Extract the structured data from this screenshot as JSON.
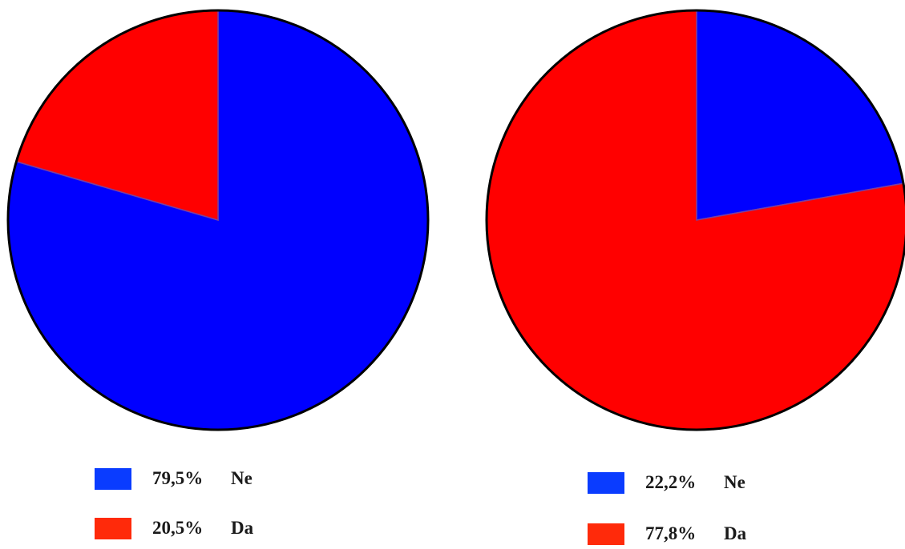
{
  "chart_data": [
    {
      "type": "pie",
      "slices": [
        {
          "label": "Ne",
          "value": 79.5,
          "value_label": "79,5%",
          "color": "#0000ff"
        },
        {
          "label": "Da",
          "value": 20.5,
          "value_label": "20,5%",
          "color": "#ff0000"
        }
      ],
      "legend_position": "bottom"
    },
    {
      "type": "pie",
      "slices": [
        {
          "label": "Ne",
          "value": 22.2,
          "value_label": "22,2%",
          "color": "#0000ff"
        },
        {
          "label": "Da",
          "value": 77.8,
          "value_label": "77,8%",
          "color": "#ff0000"
        }
      ],
      "legend_position": "bottom"
    }
  ],
  "colors": {
    "ne_swatch": "#0a3cff",
    "da_swatch": "#ff2a0a",
    "outline": "#000000"
  }
}
